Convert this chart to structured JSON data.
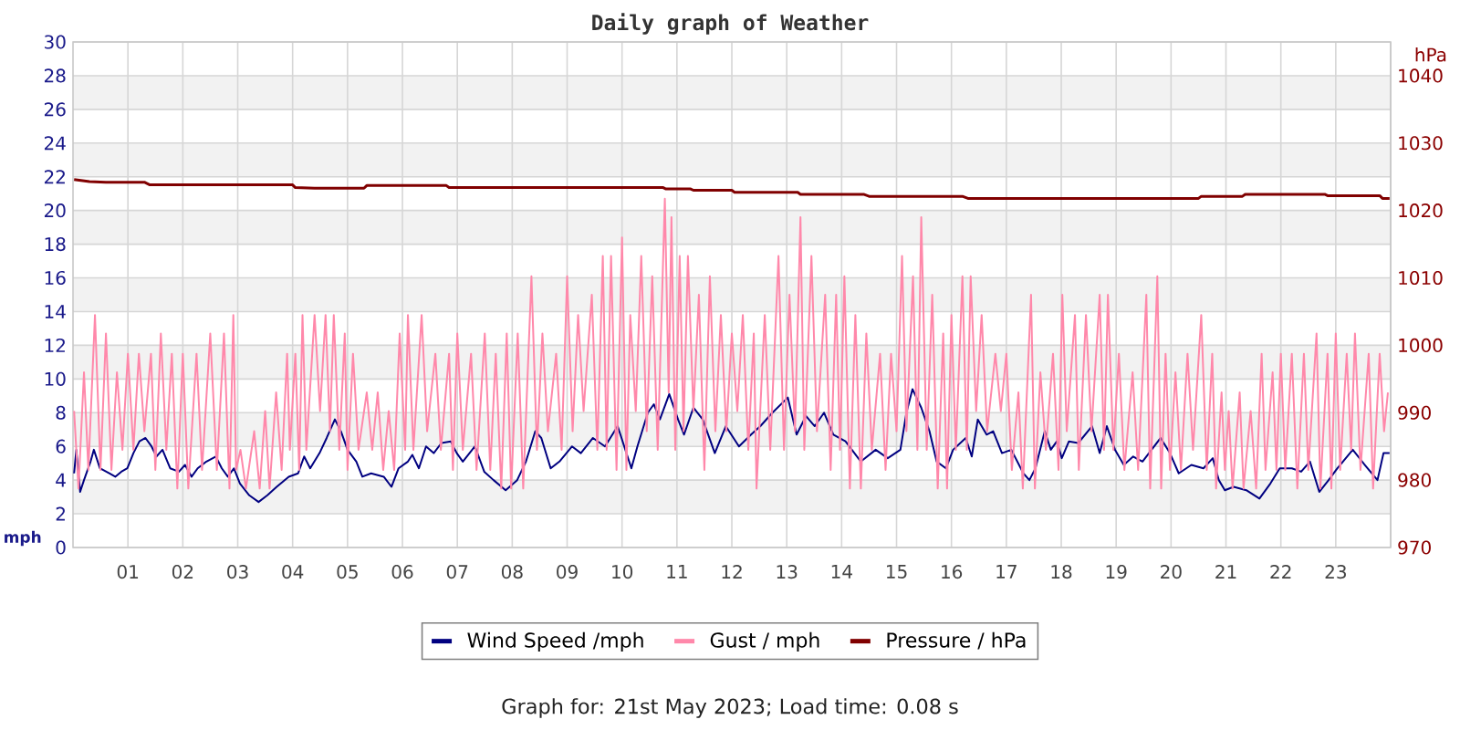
{
  "chart_data": {
    "type": "line",
    "title": "Daily graph of Weather",
    "ylabel": "mph",
    "y2label": "hPa",
    "annotations": [
      "Graph for: 21st May 2023; Load time: 0.08 s"
    ],
    "xlim": [
      0,
      24
    ],
    "ylim": [
      0,
      30
    ],
    "y2lim": [
      970,
      1045
    ],
    "xticks": [
      {
        "value": 1,
        "label": "01"
      },
      {
        "value": 2,
        "label": "02"
      },
      {
        "value": 3,
        "label": "03"
      },
      {
        "value": 4,
        "label": "04"
      },
      {
        "value": 5,
        "label": "05"
      },
      {
        "value": 6,
        "label": "06"
      },
      {
        "value": 7,
        "label": "07"
      },
      {
        "value": 8,
        "label": "08"
      },
      {
        "value": 9,
        "label": "09"
      },
      {
        "value": 10,
        "label": "10"
      },
      {
        "value": 11,
        "label": "11"
      },
      {
        "value": 12,
        "label": "12"
      },
      {
        "value": 13,
        "label": "13"
      },
      {
        "value": 14,
        "label": "14"
      },
      {
        "value": 15,
        "label": "15"
      },
      {
        "value": 16,
        "label": "16"
      },
      {
        "value": 17,
        "label": "17"
      },
      {
        "value": 18,
        "label": "18"
      },
      {
        "value": 19,
        "label": "19"
      },
      {
        "value": 20,
        "label": "20"
      },
      {
        "value": 21,
        "label": "21"
      },
      {
        "value": 22,
        "label": "22"
      },
      {
        "value": 23,
        "label": "23"
      }
    ],
    "yticks": [
      0,
      2,
      4,
      6,
      8,
      10,
      12,
      14,
      16,
      18,
      20,
      22,
      24,
      26,
      28,
      30
    ],
    "y2ticks": [
      970,
      980,
      990,
      1000,
      1010,
      1020,
      1030,
      1040
    ],
    "grid": true,
    "legend": "bottom",
    "bands": [
      {
        "axis": "y",
        "from": 2,
        "to": 4,
        "color": "#f2f2f2"
      },
      {
        "axis": "y",
        "from": 6,
        "to": 8,
        "color": "#f2f2f2"
      },
      {
        "axis": "y",
        "from": 10,
        "to": 12,
        "color": "#f2f2f2"
      },
      {
        "axis": "y",
        "from": 14,
        "to": 16,
        "color": "#f2f2f2"
      },
      {
        "axis": "y",
        "from": 18,
        "to": 20,
        "color": "#f2f2f2"
      },
      {
        "axis": "y",
        "from": 22,
        "to": 24,
        "color": "#f2f2f2"
      },
      {
        "axis": "y",
        "from": 26,
        "to": 28,
        "color": "#f2f2f2"
      }
    ],
    "series": [
      {
        "name": "Wind Speed /mph",
        "color": "#000080",
        "x": [
          0.02,
          0.06,
          0.13,
          0.2,
          0.32,
          0.38,
          0.49,
          0.66,
          0.77,
          0.88,
          0.99,
          1.1,
          1.21,
          1.32,
          1.43,
          1.52,
          1.63,
          1.77,
          1.93,
          2.04,
          2.16,
          2.27,
          2.43,
          2.6,
          2.71,
          2.82,
          2.93,
          3.04,
          3.21,
          3.38,
          3.54,
          3.71,
          3.93,
          4.1,
          4.21,
          4.32,
          4.49,
          4.62,
          4.77,
          4.88,
          5.0,
          5.16,
          5.27,
          5.43,
          5.66,
          5.8,
          5.93,
          6.1,
          6.18,
          6.3,
          6.43,
          6.57,
          6.71,
          6.88,
          6.99,
          7.1,
          7.32,
          7.49,
          7.66,
          7.88,
          8.09,
          8.25,
          8.42,
          8.53,
          8.7,
          8.86,
          9.09,
          9.25,
          9.47,
          9.69,
          9.92,
          10.17,
          10.28,
          10.47,
          10.58,
          10.69,
          10.86,
          11.02,
          11.13,
          11.3,
          11.47,
          11.69,
          11.89,
          12.13,
          12.35,
          12.52,
          12.74,
          13.02,
          13.18,
          13.35,
          13.51,
          13.68,
          13.85,
          14.07,
          14.35,
          14.62,
          14.84,
          15.07,
          15.18,
          15.29,
          15.45,
          15.6,
          15.73,
          15.9,
          16.03,
          16.26,
          16.37,
          16.48,
          16.64,
          16.76,
          16.92,
          17.09,
          17.31,
          17.42,
          17.53,
          17.7,
          17.81,
          17.92,
          18.01,
          18.14,
          18.31,
          18.56,
          18.7,
          18.83,
          18.98,
          19.14,
          19.31,
          19.48,
          19.81,
          19.98,
          20.14,
          20.37,
          20.59,
          20.76,
          20.87,
          20.98,
          21.14,
          21.37,
          21.61,
          21.81,
          21.98,
          22.2,
          22.37,
          22.53,
          22.7,
          22.87,
          23.03,
          23.31,
          23.53,
          23.76,
          23.87,
          23.98
        ],
        "values": [
          4.4,
          5.8,
          3.3,
          4.0,
          5.1,
          5.8,
          4.7,
          4.4,
          4.2,
          4.5,
          4.7,
          5.6,
          6.3,
          6.5,
          6.0,
          5.4,
          5.8,
          4.7,
          4.5,
          4.9,
          4.2,
          4.7,
          5.1,
          5.4,
          4.7,
          4.2,
          4.7,
          3.8,
          3.1,
          2.7,
          3.1,
          3.6,
          4.2,
          4.4,
          5.4,
          4.7,
          5.6,
          6.5,
          7.6,
          6.9,
          5.8,
          5.1,
          4.2,
          4.4,
          4.2,
          3.6,
          4.7,
          5.1,
          5.5,
          4.7,
          6.0,
          5.6,
          6.2,
          6.3,
          5.6,
          5.1,
          6.0,
          4.5,
          4.0,
          3.4,
          4.0,
          5.1,
          6.9,
          6.5,
          4.7,
          5.1,
          6.0,
          5.6,
          6.5,
          6.0,
          7.2,
          4.7,
          6.0,
          8.0,
          8.5,
          7.6,
          9.1,
          7.6,
          6.7,
          8.3,
          7.6,
          5.6,
          7.2,
          6.0,
          6.7,
          7.2,
          8.0,
          8.9,
          6.7,
          7.8,
          7.2,
          8.0,
          6.7,
          6.3,
          5.1,
          5.8,
          5.3,
          5.8,
          8.0,
          9.4,
          8.3,
          6.9,
          5.1,
          4.7,
          5.8,
          6.5,
          5.4,
          7.6,
          6.7,
          6.9,
          5.6,
          5.8,
          4.4,
          4.0,
          4.7,
          6.9,
          5.8,
          6.3,
          5.3,
          6.3,
          6.2,
          7.2,
          5.6,
          7.2,
          5.8,
          4.9,
          5.4,
          5.1,
          6.5,
          5.6,
          4.4,
          4.9,
          4.7,
          5.3,
          4.0,
          3.4,
          3.6,
          3.4,
          2.9,
          3.8,
          4.7,
          4.7,
          4.5,
          5.1,
          3.3,
          4.0,
          4.7,
          5.8,
          4.9,
          4.0,
          5.6,
          5.6
        ]
      },
      {
        "name": "Gust / mph",
        "color": "#ff88aa",
        "x": [
          0.02,
          0.1,
          0.2,
          0.28,
          0.4,
          0.5,
          0.6,
          0.7,
          0.8,
          0.9,
          1.0,
          1.1,
          1.2,
          1.3,
          1.42,
          1.5,
          1.6,
          1.7,
          1.8,
          1.9,
          2.0,
          2.1,
          2.25,
          2.35,
          2.5,
          2.62,
          2.75,
          2.85,
          2.92,
          2.97,
          3.05,
          3.15,
          3.3,
          3.4,
          3.5,
          3.58,
          3.7,
          3.8,
          3.9,
          3.95,
          4.05,
          4.12,
          4.18,
          4.25,
          4.4,
          4.5,
          4.6,
          4.68,
          4.75,
          4.85,
          4.95,
          5.0,
          5.1,
          5.2,
          5.35,
          5.45,
          5.55,
          5.65,
          5.75,
          5.85,
          5.95,
          6.05,
          6.1,
          6.2,
          6.35,
          6.45,
          6.6,
          6.7,
          6.85,
          6.92,
          7.0,
          7.1,
          7.25,
          7.35,
          7.5,
          7.6,
          7.7,
          7.8,
          7.9,
          7.98,
          8.1,
          8.2,
          8.35,
          8.45,
          8.55,
          8.65,
          8.8,
          8.9,
          9.0,
          9.1,
          9.2,
          9.3,
          9.45,
          9.55,
          9.65,
          9.72,
          9.8,
          9.9,
          10.0,
          10.08,
          10.15,
          10.25,
          10.35,
          10.45,
          10.55,
          10.65,
          10.78,
          10.85,
          10.9,
          10.97,
          11.05,
          11.12,
          11.2,
          11.3,
          11.4,
          11.5,
          11.6,
          11.7,
          11.8,
          11.9,
          12.0,
          12.1,
          12.2,
          12.3,
          12.4,
          12.45,
          12.6,
          12.7,
          12.85,
          12.95,
          13.05,
          13.15,
          13.25,
          13.32,
          13.45,
          13.55,
          13.7,
          13.8,
          13.9,
          13.97,
          14.05,
          14.15,
          14.25,
          14.35,
          14.45,
          14.55,
          14.7,
          14.8,
          14.9,
          15.0,
          15.1,
          15.18,
          15.3,
          15.38,
          15.45,
          15.55,
          15.65,
          15.75,
          15.85,
          15.92,
          16.0,
          16.08,
          16.2,
          16.28,
          16.35,
          16.45,
          16.55,
          16.65,
          16.8,
          16.9,
          17.0,
          17.1,
          17.22,
          17.3,
          17.45,
          17.52,
          17.62,
          17.72,
          17.85,
          17.95,
          18.02,
          18.1,
          18.25,
          18.32,
          18.45,
          18.55,
          18.7,
          18.78,
          18.85,
          18.95,
          19.05,
          19.15,
          19.3,
          19.4,
          19.55,
          19.62,
          19.75,
          19.82,
          19.9,
          19.98,
          20.08,
          20.18,
          20.3,
          20.4,
          20.55,
          20.65,
          20.75,
          20.82,
          20.92,
          20.98,
          21.05,
          21.12,
          21.25,
          21.32,
          21.45,
          21.55,
          21.65,
          21.72,
          21.85,
          21.92,
          22.0,
          22.08,
          22.2,
          22.3,
          22.42,
          22.5,
          22.65,
          22.72,
          22.85,
          22.92,
          23.0,
          23.08,
          23.2,
          23.28,
          23.35,
          23.45,
          23.6,
          23.68,
          23.8,
          23.88,
          23.95
        ],
        "values": [
          8.1,
          3.5,
          10.4,
          4.6,
          13.8,
          4.6,
          12.7,
          4.6,
          10.4,
          5.8,
          11.5,
          5.8,
          11.5,
          6.9,
          11.5,
          4.6,
          12.7,
          5.8,
          11.5,
          3.5,
          11.5,
          3.5,
          11.5,
          4.6,
          12.7,
          4.6,
          12.7,
          3.5,
          13.8,
          4.6,
          5.8,
          3.5,
          6.9,
          3.5,
          8.1,
          3.5,
          9.2,
          4.6,
          11.5,
          5.8,
          11.5,
          4.6,
          13.8,
          5.8,
          13.8,
          8.1,
          13.8,
          6.9,
          13.8,
          5.8,
          12.7,
          4.6,
          11.5,
          5.8,
          9.2,
          5.8,
          9.2,
          4.6,
          8.1,
          4.6,
          12.7,
          5.8,
          13.8,
          5.8,
          13.8,
          6.9,
          11.5,
          5.8,
          11.5,
          4.6,
          12.7,
          5.8,
          11.5,
          4.6,
          12.7,
          4.6,
          11.5,
          3.5,
          12.7,
          3.5,
          12.7,
          3.5,
          16.1,
          5.8,
          12.7,
          6.9,
          11.5,
          5.8,
          16.1,
          6.9,
          13.8,
          8.1,
          15.0,
          5.8,
          17.3,
          5.8,
          17.3,
          4.6,
          18.4,
          4.6,
          13.8,
          8.1,
          17.3,
          6.9,
          16.1,
          5.8,
          20.7,
          9.2,
          19.6,
          5.8,
          17.3,
          6.9,
          17.3,
          8.1,
          15.0,
          4.6,
          16.1,
          6.9,
          13.8,
          6.9,
          12.7,
          8.1,
          13.8,
          5.8,
          12.7,
          3.5,
          13.8,
          5.8,
          17.3,
          5.8,
          15.0,
          6.9,
          19.6,
          5.8,
          17.3,
          6.9,
          15.0,
          4.6,
          15.0,
          5.8,
          16.1,
          3.5,
          13.8,
          3.5,
          12.7,
          5.8,
          11.5,
          4.6,
          11.5,
          6.9,
          17.3,
          6.9,
          16.1,
          5.8,
          19.6,
          5.8,
          15.0,
          3.5,
          12.7,
          3.5,
          13.8,
          5.8,
          16.1,
          5.8,
          16.1,
          8.1,
          13.8,
          6.9,
          11.5,
          8.1,
          11.5,
          4.6,
          9.2,
          3.5,
          15.0,
          3.5,
          10.4,
          5.8,
          11.5,
          4.6,
          15.0,
          6.9,
          13.8,
          4.6,
          13.8,
          6.9,
          15.0,
          5.8,
          15.0,
          5.8,
          11.5,
          4.6,
          10.4,
          4.6,
          15.0,
          3.5,
          16.1,
          3.5,
          11.5,
          4.6,
          10.4,
          4.6,
          11.5,
          5.8,
          13.8,
          4.6,
          11.5,
          3.5,
          9.2,
          4.6,
          8.1,
          3.5,
          9.2,
          3.5,
          8.1,
          3.5,
          11.5,
          4.6,
          10.4,
          4.6,
          11.5,
          4.6,
          11.5,
          3.5,
          11.5,
          4.6,
          12.7,
          3.5,
          11.5,
          3.5,
          12.7,
          4.6,
          11.5,
          5.8,
          12.7,
          4.6,
          11.5,
          3.5,
          11.5,
          6.9,
          9.2
        ]
      },
      {
        "name": "Pressure / hPa",
        "color": "#800000",
        "axis": "y2",
        "x": [
          0.02,
          0.3,
          0.6,
          1.3,
          1.4,
          4.0,
          4.05,
          4.4,
          5.3,
          5.35,
          6.8,
          6.85,
          10.75,
          10.8,
          11.25,
          11.3,
          12.0,
          12.05,
          13.2,
          13.25,
          14.4,
          14.5,
          16.2,
          16.3,
          20.5,
          20.55,
          21.3,
          21.35,
          22.8,
          22.85,
          23.8,
          23.85,
          23.98
        ],
        "values": [
          1024.6,
          1024.3,
          1024.2,
          1024.2,
          1023.8,
          1023.8,
          1023.4,
          1023.3,
          1023.3,
          1023.7,
          1023.7,
          1023.4,
          1023.4,
          1023.2,
          1023.2,
          1023.0,
          1023.0,
          1022.7,
          1022.7,
          1022.4,
          1022.4,
          1022.1,
          1022.1,
          1021.8,
          1021.8,
          1022.1,
          1022.1,
          1022.4,
          1022.4,
          1022.2,
          1022.2,
          1021.8,
          1021.8
        ]
      }
    ]
  }
}
